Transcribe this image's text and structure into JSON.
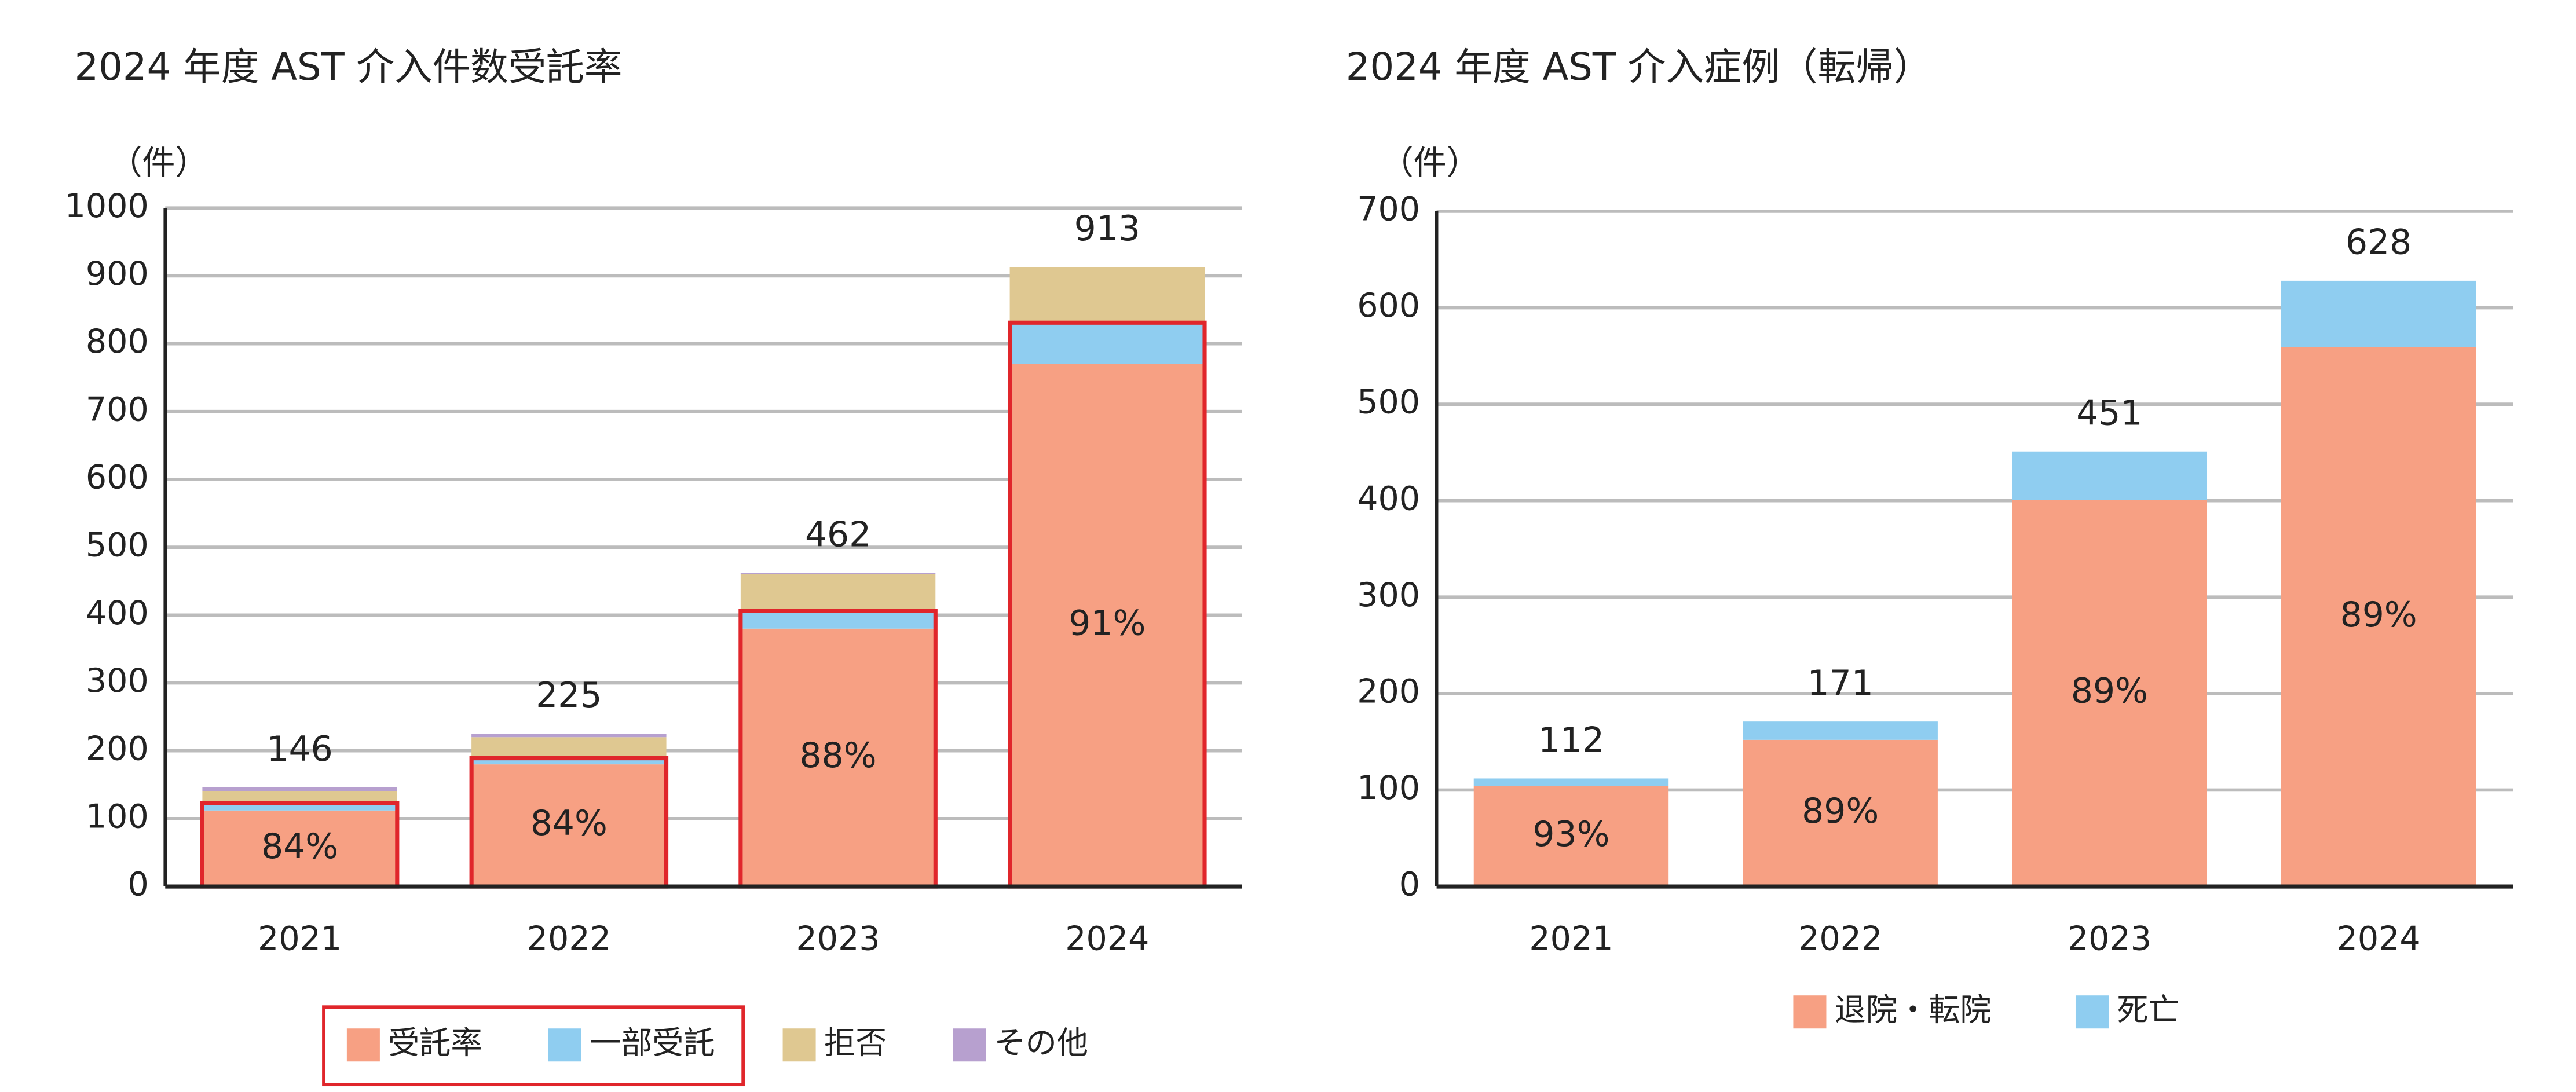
{
  "chart_data": [
    {
      "type": "bar",
      "stacked": true,
      "title": "2024 年度 AST 介入件数受託率",
      "y_label": "（件）",
      "categories": [
        "2021",
        "2022",
        "2023",
        "2024"
      ],
      "series": [
        {
          "name": "受託率",
          "color": "#f7a083",
          "values": [
            112,
            180,
            380,
            770
          ]
        },
        {
          "name": "一部受託",
          "color": "#8fcdf0",
          "values": [
            11,
            9,
            26,
            61
          ]
        },
        {
          "name": "拒否",
          "color": "#dfc891",
          "values": [
            17,
            31,
            54,
            82
          ]
        },
        {
          "name": "その他",
          "color": "#b7a0cf",
          "values": [
            6,
            5,
            2,
            0
          ]
        }
      ],
      "totals": [
        146,
        225,
        462,
        913
      ],
      "rate": {
        "values": [
          84,
          84,
          88,
          91
        ],
        "value_labels": [
          "84%",
          "84%",
          "88%",
          "91%"
        ]
      },
      "highlight_color": "#e0262b",
      "highlight_series": 2,
      "ylim": [
        0,
        1000
      ],
      "yticks": [
        0,
        100,
        200,
        300,
        400,
        500,
        600,
        700,
        800,
        900,
        1000
      ],
      "grid": true
    },
    {
      "type": "bar",
      "stacked": true,
      "title": "2024 年度 AST 介入症例（転帰）",
      "y_label": "（件）",
      "categories": [
        "2021",
        "2022",
        "2023",
        "2024"
      ],
      "series": [
        {
          "name": "退院・転院",
          "color": "#f7a083",
          "values": [
            104,
            152,
            401,
            559
          ]
        },
        {
          "name": "死亡",
          "color": "#8fcdf0",
          "values": [
            8,
            19,
            50,
            69
          ]
        }
      ],
      "totals": [
        112,
        171,
        451,
        628
      ],
      "rate": {
        "values": [
          93,
          89,
          89,
          89
        ],
        "value_labels": [
          "93%",
          "89%",
          "89%",
          "89%"
        ]
      },
      "ylim": [
        0,
        700
      ],
      "yticks": [
        0,
        100,
        200,
        300,
        400,
        500,
        600,
        700
      ],
      "grid": true
    }
  ]
}
